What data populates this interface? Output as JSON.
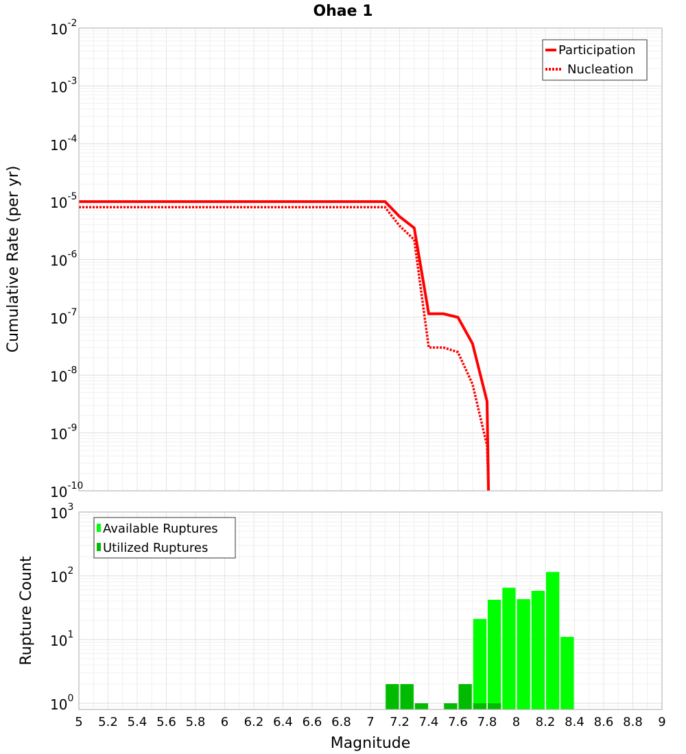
{
  "chart_data": [
    {
      "type": "line",
      "title": "Ohae 1",
      "xlabel": "",
      "ylabel": "Cumulative Rate (per yr)",
      "yscale": "log",
      "xlim": [
        5,
        9
      ],
      "ylim": [
        1e-10,
        0.01
      ],
      "grid": true,
      "legend_position": "top-right",
      "y_tick_labels": [
        {
          "base": "10",
          "exp": "-2"
        },
        {
          "base": "10",
          "exp": "-3"
        },
        {
          "base": "10",
          "exp": "-4"
        },
        {
          "base": "10",
          "exp": "-5"
        },
        {
          "base": "10",
          "exp": "-6"
        },
        {
          "base": "10",
          "exp": "-7"
        },
        {
          "base": "10",
          "exp": "-8"
        },
        {
          "base": "10",
          "exp": "-9"
        },
        {
          "base": "10",
          "exp": "-10"
        }
      ],
      "series": [
        {
          "name": "Participation",
          "color": "#ff0000",
          "style": "solid",
          "x": [
            5.0,
            7.1,
            7.2,
            7.3,
            7.4,
            7.5,
            7.6,
            7.7,
            7.8,
            7.81
          ],
          "y": [
            1e-05,
            1e-05,
            5.5e-06,
            3.5e-06,
            1.15e-07,
            1.15e-07,
            1e-07,
            3.5e-08,
            3.5e-09,
            1e-10
          ]
        },
        {
          "name": "Nucleation",
          "color": "#ff0000",
          "style": "dotted",
          "x": [
            5.0,
            7.1,
            7.2,
            7.3,
            7.4,
            7.5,
            7.6,
            7.7,
            7.8,
            7.81
          ],
          "y": [
            8e-06,
            8e-06,
            3.8e-06,
            2.2e-06,
            3e-08,
            3e-08,
            2.5e-08,
            7e-09,
            6e-10,
            1e-10
          ]
        }
      ]
    },
    {
      "type": "bar",
      "xlabel": "Magnitude",
      "ylabel": "Rupture Count",
      "yscale": "log",
      "xlim": [
        5,
        9
      ],
      "ylim": [
        0.8,
        1000
      ],
      "grid": true,
      "legend_position": "top-left",
      "x_ticks": [
        "5",
        "5.2",
        "5.4",
        "5.6",
        "5.8",
        "6",
        "6.2",
        "6.4",
        "6.6",
        "6.8",
        "7",
        "7.2",
        "7.4",
        "7.6",
        "7.8",
        "8",
        "8.2",
        "8.4",
        "8.6",
        "8.8",
        "9"
      ],
      "y_tick_labels": [
        {
          "base": "10",
          "exp": "3"
        },
        {
          "base": "10",
          "exp": "2"
        },
        {
          "base": "10",
          "exp": "1"
        },
        {
          "base": "10",
          "exp": "0"
        }
      ],
      "bar_width": 0.1,
      "series": [
        {
          "name": "Available Ruptures",
          "color": "#00ff00",
          "x": [
            7.15,
            7.25,
            7.35,
            7.55,
            7.65,
            7.75,
            7.85,
            7.95,
            8.05,
            8.15,
            8.25,
            8.35
          ],
          "values": [
            2,
            2,
            1,
            1,
            2,
            21,
            42,
            65,
            43,
            58,
            115,
            11
          ]
        },
        {
          "name": "Utilized Ruptures",
          "color": "#00bb00",
          "x": [
            7.15,
            7.25,
            7.35,
            7.55,
            7.65,
            7.75,
            7.85
          ],
          "values": [
            2,
            2,
            1,
            1,
            2,
            1,
            1
          ]
        }
      ]
    }
  ]
}
